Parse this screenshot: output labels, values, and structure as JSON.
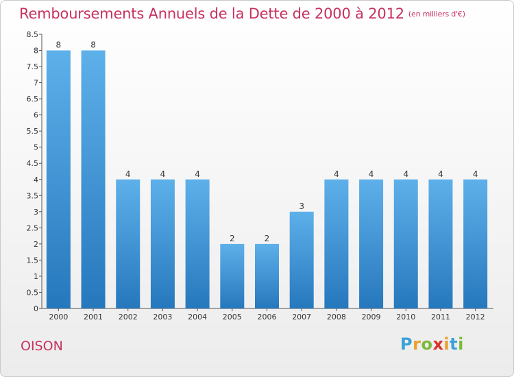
{
  "chart_data": {
    "type": "bar",
    "title": "Remboursements Annuels de la Dette de 2000 à 2012",
    "unit": "(en milliers d'€)",
    "categories": [
      "2000",
      "2001",
      "2002",
      "2003",
      "2004",
      "2005",
      "2006",
      "2007",
      "2008",
      "2009",
      "2010",
      "2011",
      "2012"
    ],
    "values": [
      8,
      8,
      4,
      4,
      4,
      2,
      2,
      3,
      4,
      4,
      4,
      4,
      4
    ],
    "data_labels": [
      "8",
      "8",
      "4",
      "4",
      "4",
      "2",
      "2",
      "3",
      "4",
      "4",
      "4",
      "4",
      "4"
    ],
    "y_ticks": [
      "0",
      "0.5",
      "1",
      "1.5",
      "2",
      "2.5",
      "3",
      "3.5",
      "4",
      "4.5",
      "5",
      "5.5",
      "6",
      "6.5",
      "7",
      "7.5",
      "8",
      "8.5"
    ],
    "ylim": [
      0,
      8.5
    ],
    "grid": false,
    "bar_color": "#3a8fd6"
  },
  "place": "OISON",
  "logo": [
    "P",
    "r",
    "o",
    "x",
    "i",
    "t",
    "i"
  ]
}
